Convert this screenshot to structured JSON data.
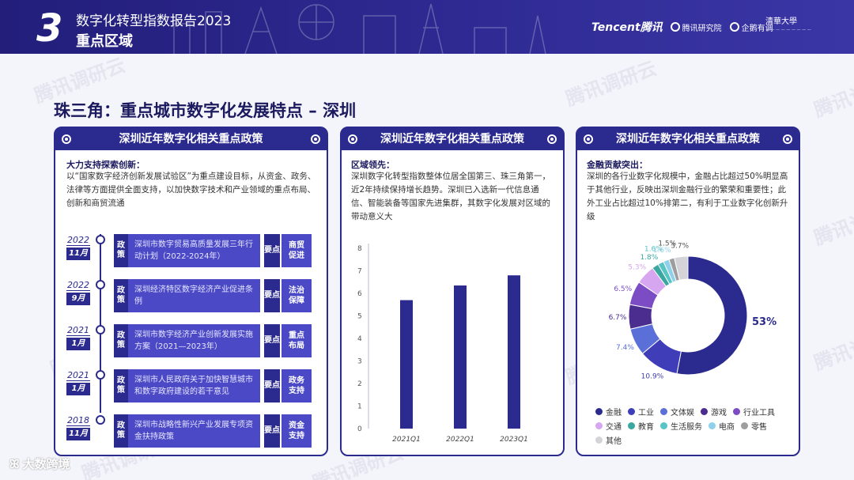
{
  "header": {
    "section_number": "3",
    "report_title": "数字化转型指数报告2023",
    "section_title": "重点区域",
    "logo_tencent": "Tencent腾讯",
    "logo_research": "腾讯研究院",
    "logo_third": "企鹅有调",
    "logo_tsinghua": "清華大學"
  },
  "watermark": "腾讯调研云",
  "page_title": "珠三角：重点城市数字化发展特点 – 深圳",
  "panels": [
    {
      "title": "深圳近年数字化相关重点政策",
      "subtitle": "大力支持探索创新：",
      "description": "以“国家数字经济创新发展试验区”为重点建设目标，从资金、政务、法律等方面提供全面支持，以加快数字技术和产业领域的重点布局、创新和商贸流通",
      "timeline": [
        {
          "year": "2022",
          "month": "11月",
          "tag": "政策",
          "text": "深圳市数字贸易高质量发展三年行动计划（2022-2024年）",
          "key": "要点",
          "keyword": "商贸促进"
        },
        {
          "year": "2022",
          "month": "9月",
          "tag": "政策",
          "text": "深圳经济特区数字经济产业促进条例",
          "key": "要点",
          "keyword": "法治保障"
        },
        {
          "year": "2021",
          "month": "1月",
          "tag": "政策",
          "text": "深圳市数字经济产业创新发展实施方案（2021—2023年）",
          "key": "要点",
          "keyword": "重点布局"
        },
        {
          "year": "2021",
          "month": "1月",
          "tag": "政策",
          "text": "深圳市人民政府关于加快智慧城市和数字政府建设的若干意见",
          "key": "要点",
          "keyword": "政务支持"
        },
        {
          "year": "2018",
          "month": "11月",
          "tag": "政策",
          "text": "深圳市战略性新兴产业发展专项资金扶持政策",
          "key": "要点",
          "keyword": "资金支持"
        }
      ]
    },
    {
      "title": "深圳近年数字化相关重点政策",
      "subtitle": "区域领先：",
      "description": "深圳数字化转型指数整体位居全国第三、珠三角第一，近2年持续保持增长趋势。深圳已入选新一代信息通信、智能装备等国家先进集群，其数字化发展对区域的带动意义大"
    },
    {
      "title": "深圳近年数字化相关重点政策",
      "subtitle": "金融贡献突出：",
      "description": "深圳的各行业数字化规模中，金融占比超过50%明显高于其他行业，反映出深圳金融行业的繁荣和重要性；此外工业占比超过10%排第二，有利于工业数字化创新升级"
    }
  ],
  "chart_data": [
    {
      "type": "bar",
      "categories": [
        "2021Q1",
        "2022Q1",
        "2023Q1"
      ],
      "values": [
        5.7,
        6.35,
        6.8
      ],
      "ylim": [
        0,
        8
      ],
      "yticks": [
        0,
        1,
        2,
        3,
        4,
        5,
        6,
        7,
        8
      ],
      "color": "#2b2a8f"
    },
    {
      "type": "pie",
      "donut": true,
      "slices": [
        {
          "name": "金融",
          "value": 53,
          "label": "53%",
          "color": "#2b2a8f"
        },
        {
          "name": "工业",
          "value": 10.9,
          "label": "10.9%",
          "color": "#3f3db8"
        },
        {
          "name": "文体娱",
          "value": 7.4,
          "label": "7.4%",
          "color": "#5a6fd8"
        },
        {
          "name": "游戏",
          "value": 6.7,
          "label": "6.7%",
          "color": "#4a2d8f"
        },
        {
          "name": "行业工具",
          "value": 6.5,
          "label": "6.5%",
          "color": "#7b4cc4"
        },
        {
          "name": "交通",
          "value": 5.3,
          "label": "5.3%",
          "color": "#d6a6f0"
        },
        {
          "name": "教育",
          "value": 1.8,
          "label": "1.8%",
          "color": "#3aa8a0"
        },
        {
          "name": "生活服务",
          "value": 1.6,
          "label": "1.6%",
          "color": "#58c4c6"
        },
        {
          "name": "电商",
          "value": 1.6,
          "label": "1.6%",
          "color": "#8fd0ea"
        },
        {
          "name": "零售",
          "value": 1.5,
          "label": "1.5%",
          "color": "#9e9e9e"
        },
        {
          "name": "其他",
          "value": 3.7,
          "label": "3.7%",
          "color": "#d4d4d8"
        }
      ]
    }
  ],
  "footer": {
    "brand": "大数跨境"
  }
}
